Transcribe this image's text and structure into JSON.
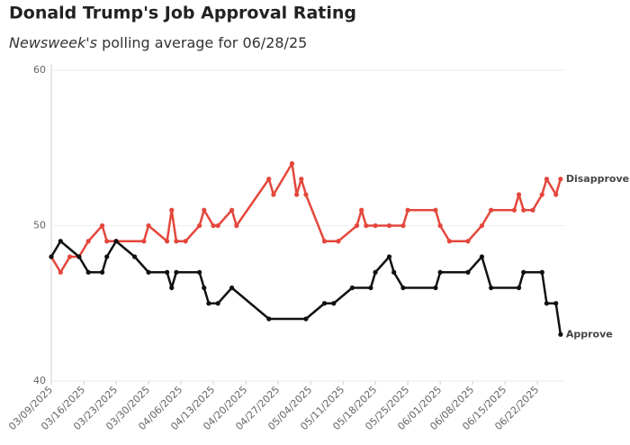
{
  "chart_data": {
    "type": "line",
    "title": "Donald Trump's Job Approval Rating",
    "subtitle_source": "Newsweek's",
    "subtitle": "polling average for 06/28/25",
    "ylim": [
      40,
      60
    ],
    "yticks": [
      40,
      50,
      60
    ],
    "grid": true,
    "xlim": [
      "2025-03-09",
      "2025-06-28"
    ],
    "xticks": [
      {
        "value": "2025-03-09",
        "label": "03/09/2025"
      },
      {
        "value": "2025-03-16",
        "label": "03/16/2025"
      },
      {
        "value": "2025-03-23",
        "label": "03/23/2025"
      },
      {
        "value": "2025-03-30",
        "label": "03/30/2025"
      },
      {
        "value": "2025-04-06",
        "label": "04/06/2025"
      },
      {
        "value": "2025-04-13",
        "label": "04/13/2025"
      },
      {
        "value": "2025-04-20",
        "label": "04/20/2025"
      },
      {
        "value": "2025-04-27",
        "label": "04/27/2025"
      },
      {
        "value": "2025-05-04",
        "label": "05/04/2025"
      },
      {
        "value": "2025-05-11",
        "label": "05/11/2025"
      },
      {
        "value": "2025-05-18",
        "label": "05/18/2025"
      },
      {
        "value": "2025-05-25",
        "label": "05/25/2025"
      },
      {
        "value": "2025-06-01",
        "label": "06/01/2025"
      },
      {
        "value": "2025-06-08",
        "label": "06/08/2025"
      },
      {
        "value": "2025-06-15",
        "label": "06/15/2025"
      },
      {
        "value": "2025-06-22",
        "label": "06/22/2025"
      }
    ],
    "series": [
      {
        "name": "Disapprove",
        "color": "#e4473c",
        "x": [
          "2025-03-09",
          "2025-03-11",
          "2025-03-13",
          "2025-03-15",
          "2025-03-17",
          "2025-03-20",
          "2025-03-21",
          "2025-03-23",
          "2025-03-29",
          "2025-03-30",
          "2025-04-03",
          "2025-04-04",
          "2025-04-05",
          "2025-04-07",
          "2025-04-10",
          "2025-04-11",
          "2025-04-13",
          "2025-04-14",
          "2025-04-17",
          "2025-04-18",
          "2025-04-25",
          "2025-04-26",
          "2025-04-30",
          "2025-05-01",
          "2025-05-02",
          "2025-05-03",
          "2025-05-07",
          "2025-05-10",
          "2025-05-14",
          "2025-05-15",
          "2025-05-16",
          "2025-05-18",
          "2025-05-21",
          "2025-05-24",
          "2025-05-25",
          "2025-05-31",
          "2025-06-01",
          "2025-06-03",
          "2025-06-07",
          "2025-06-10",
          "2025-06-12",
          "2025-06-17",
          "2025-06-18",
          "2025-06-19",
          "2025-06-21",
          "2025-06-23",
          "2025-06-24",
          "2025-06-26",
          "2025-06-27"
        ],
        "values": [
          48,
          47,
          48,
          48,
          49,
          50,
          49,
          49,
          49,
          50,
          49,
          51,
          49,
          49,
          50,
          51,
          50,
          50,
          51,
          50,
          53,
          52,
          54,
          52,
          53,
          52,
          49,
          49,
          50,
          51,
          50,
          50,
          50,
          50,
          51,
          51,
          50,
          49,
          49,
          50,
          51,
          51,
          52,
          51,
          51,
          52,
          53,
          52,
          53
        ]
      },
      {
        "name": "Approve",
        "color": "#111111",
        "x": [
          "2025-03-09",
          "2025-03-11",
          "2025-03-15",
          "2025-03-17",
          "2025-03-20",
          "2025-03-21",
          "2025-03-23",
          "2025-03-27",
          "2025-03-30",
          "2025-04-03",
          "2025-04-04",
          "2025-04-05",
          "2025-04-10",
          "2025-04-11",
          "2025-04-12",
          "2025-04-14",
          "2025-04-17",
          "2025-04-25",
          "2025-05-03",
          "2025-05-07",
          "2025-05-09",
          "2025-05-13",
          "2025-05-17",
          "2025-05-18",
          "2025-05-21",
          "2025-05-22",
          "2025-05-24",
          "2025-05-31",
          "2025-06-01",
          "2025-06-07",
          "2025-06-10",
          "2025-06-12",
          "2025-06-18",
          "2025-06-19",
          "2025-06-23",
          "2025-06-24",
          "2025-06-26",
          "2025-06-27"
        ],
        "values": [
          48,
          49,
          48,
          47,
          47,
          48,
          49,
          48,
          47,
          47,
          46,
          47,
          47,
          46,
          45,
          45,
          46,
          44,
          44,
          45,
          45,
          46,
          46,
          47,
          48,
          47,
          46,
          46,
          47,
          47,
          48,
          46,
          46,
          47,
          47,
          45,
          45,
          43
        ]
      }
    ]
  }
}
